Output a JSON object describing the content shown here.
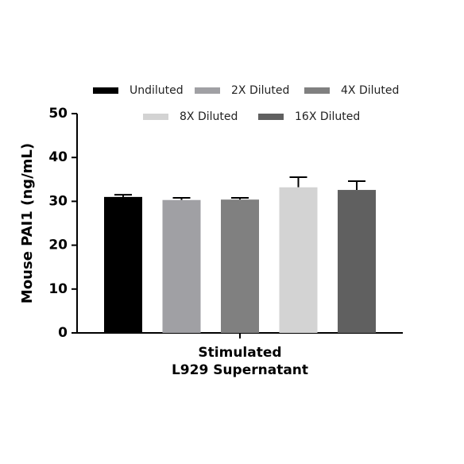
{
  "chart_data": {
    "type": "bar",
    "ylabel": "Mouse PAI1 (ng/mL)",
    "categories": [
      "Stimulated\nL929 Supernatant"
    ],
    "series": [
      {
        "name": "Undiluted",
        "color": "#000000",
        "values": [
          31.0
        ],
        "errors": [
          0.5
        ]
      },
      {
        "name": "2X Diluted",
        "color": "#a0a0a4",
        "values": [
          30.3
        ],
        "errors": [
          0.5
        ]
      },
      {
        "name": "4X Diluted",
        "color": "#808080",
        "values": [
          30.4
        ],
        "errors": [
          0.4
        ]
      },
      {
        "name": "8X Diluted",
        "color": "#d3d3d3",
        "values": [
          33.2
        ],
        "errors": [
          2.3
        ]
      },
      {
        "name": "16X Diluted",
        "color": "#606060",
        "values": [
          32.6
        ],
        "errors": [
          2.0
        ]
      }
    ],
    "ylim": [
      0,
      50
    ],
    "yticks": [
      0,
      10,
      20,
      30,
      40,
      50
    ]
  }
}
